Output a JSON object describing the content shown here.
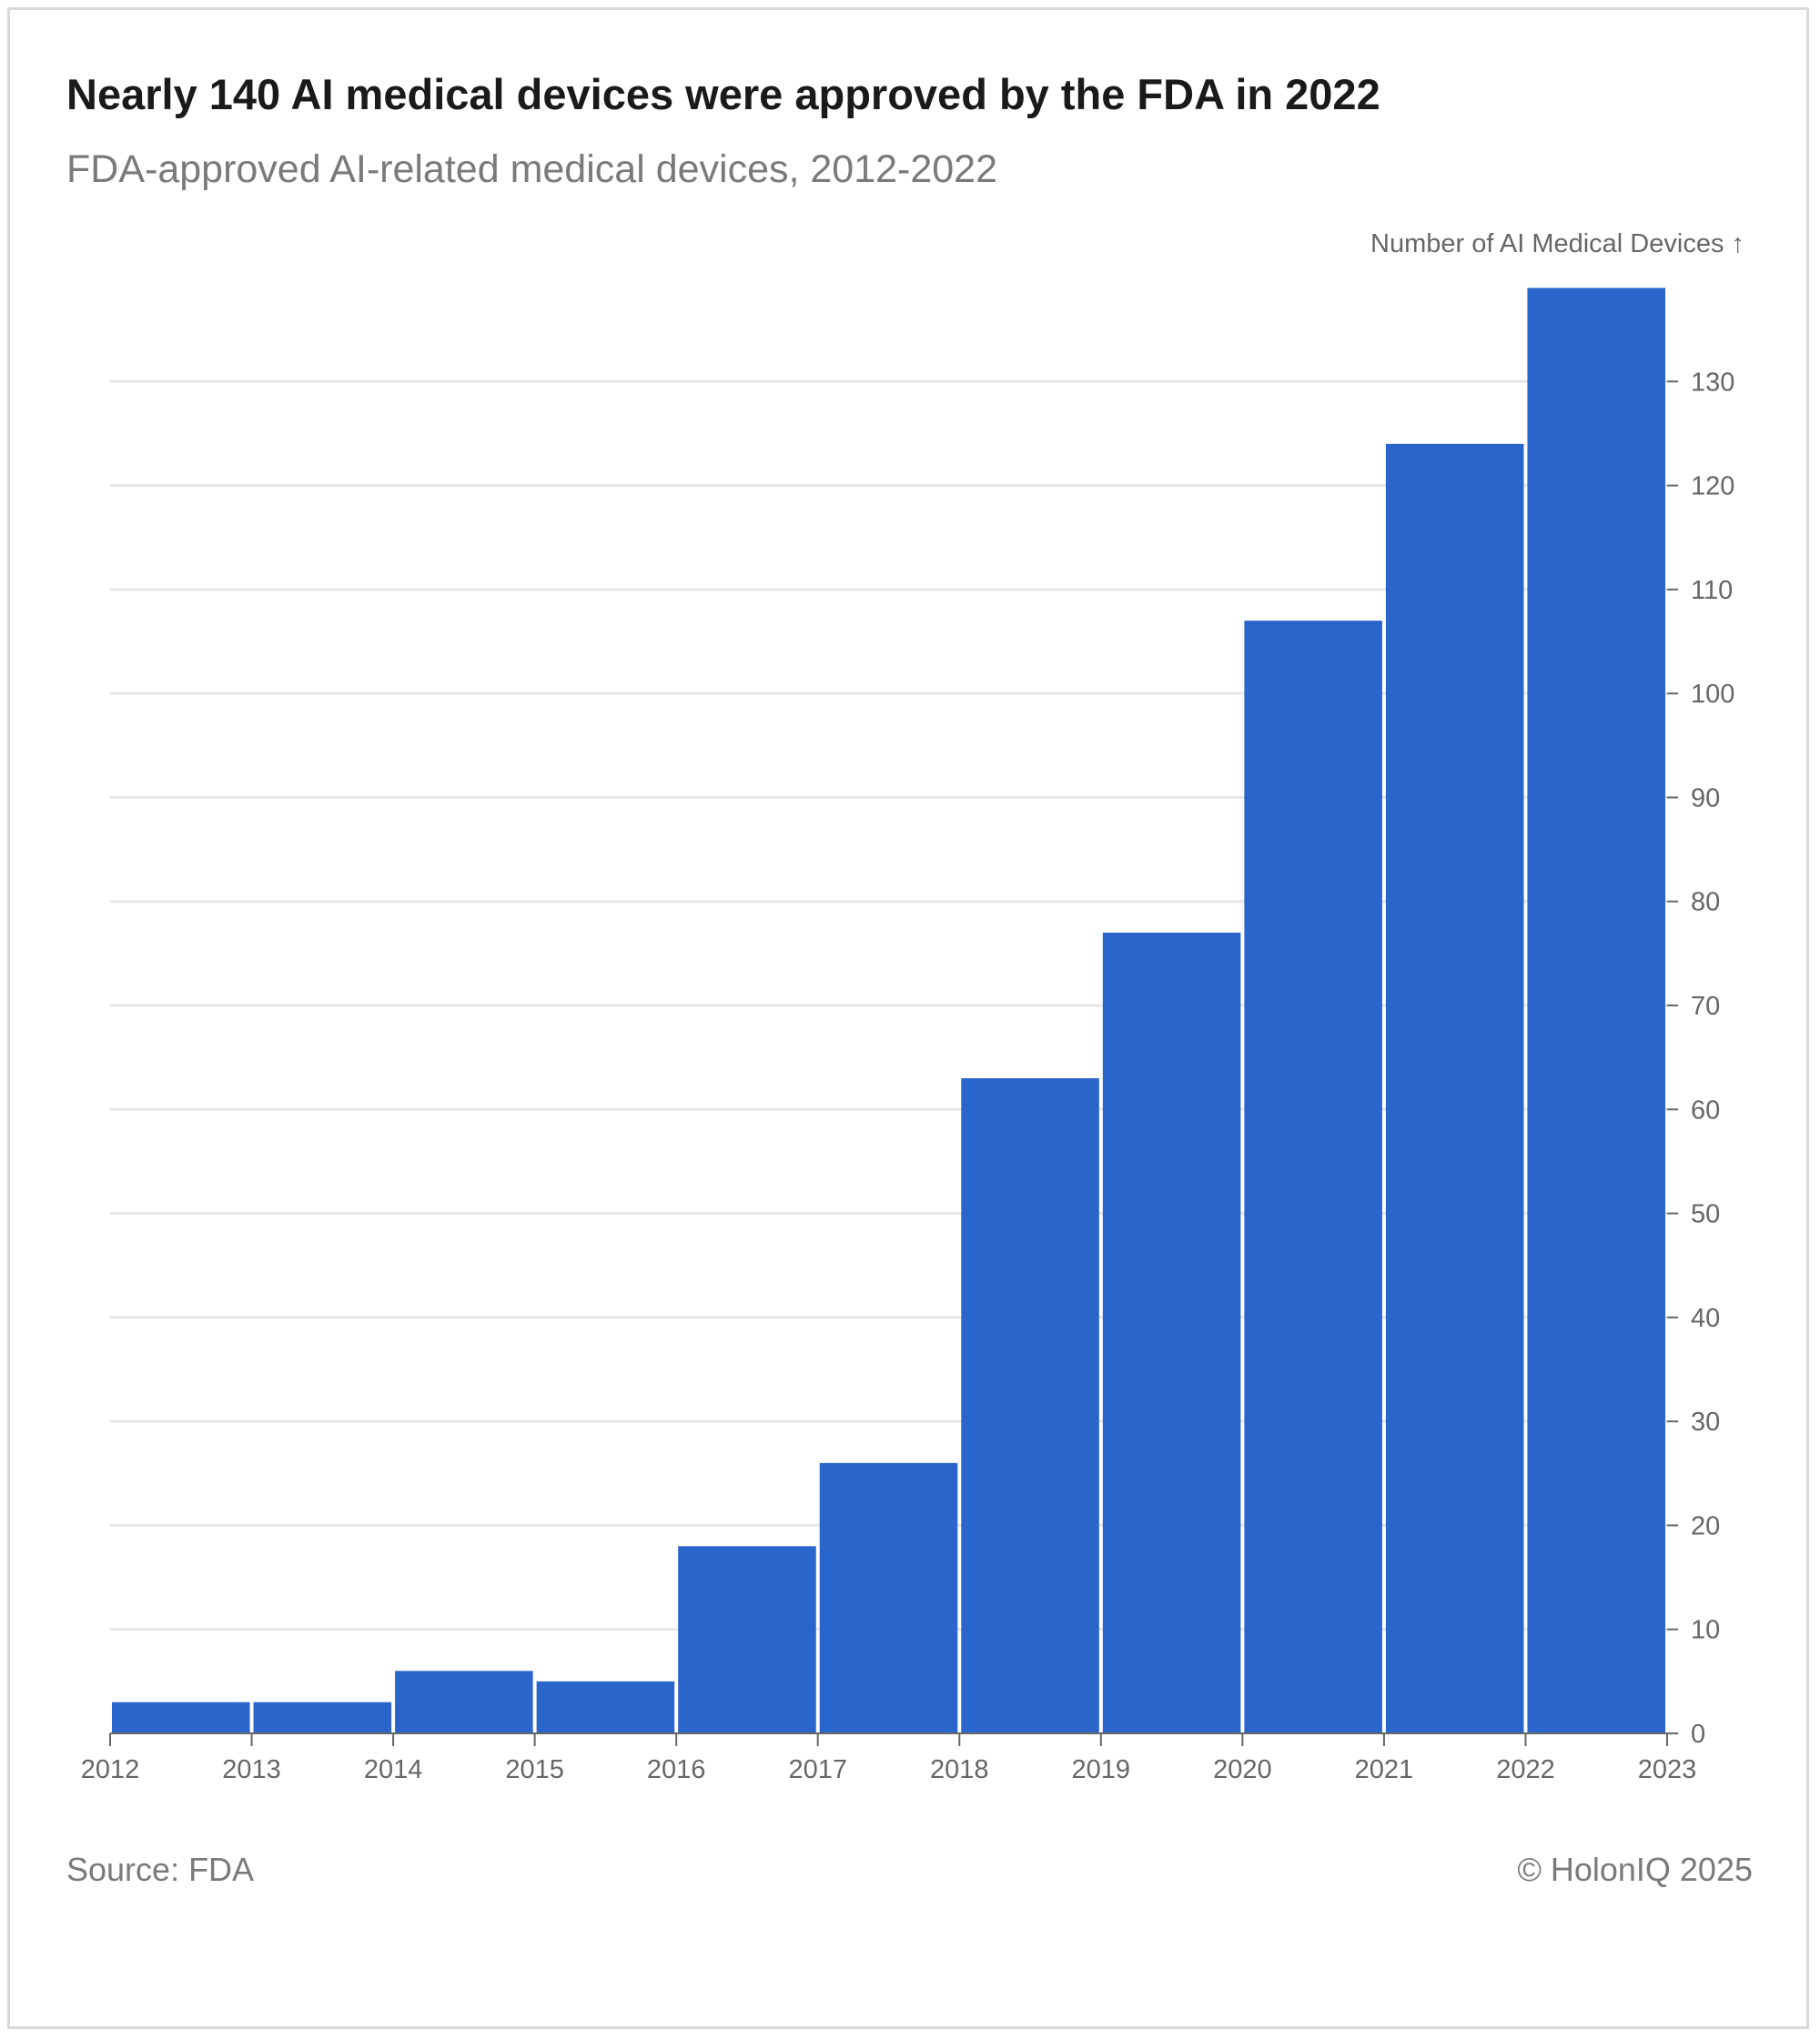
{
  "header": {
    "title": "Nearly 140 AI medical devices were approved by the FDA in 2022",
    "subtitle": "FDA-approved AI-related medical devices, 2012-2022"
  },
  "footer": {
    "source": "Source: FDA",
    "credit": "© HolonIQ 2025"
  },
  "colors": {
    "bar": "#2a65cc",
    "grid": "#e6e6e6",
    "axis": "#666666",
    "tick_text": "#666666"
  },
  "chart_data": {
    "type": "bar",
    "title": "Nearly 140 AI medical devices were approved by the FDA in 2022",
    "subtitle": "FDA-approved AI-related medical devices, 2012-2022",
    "ylabel": "Number of AI Medical Devices ↑",
    "xlabel": "",
    "y_axis_side": "right",
    "grid": true,
    "ylim": [
      0,
      140
    ],
    "yticks": [
      0,
      10,
      20,
      30,
      40,
      50,
      60,
      70,
      80,
      90,
      100,
      110,
      120,
      130
    ],
    "x_ticks": [
      "2012",
      "2013",
      "2014",
      "2015",
      "2016",
      "2017",
      "2018",
      "2019",
      "2020",
      "2021",
      "2022",
      "2023"
    ],
    "bins": [
      {
        "start": 2012,
        "end": 2013,
        "value": 3
      },
      {
        "start": 2013,
        "end": 2014,
        "value": 3
      },
      {
        "start": 2014,
        "end": 2015,
        "value": 6
      },
      {
        "start": 2015,
        "end": 2016,
        "value": 5
      },
      {
        "start": 2016,
        "end": 2017,
        "value": 18
      },
      {
        "start": 2017,
        "end": 2018,
        "value": 26
      },
      {
        "start": 2018,
        "end": 2019,
        "value": 63
      },
      {
        "start": 2019,
        "end": 2020,
        "value": 77
      },
      {
        "start": 2020,
        "end": 2021,
        "value": 107
      },
      {
        "start": 2021,
        "end": 2022,
        "value": 124
      },
      {
        "start": 2022,
        "end": 2023,
        "value": 139
      }
    ]
  }
}
